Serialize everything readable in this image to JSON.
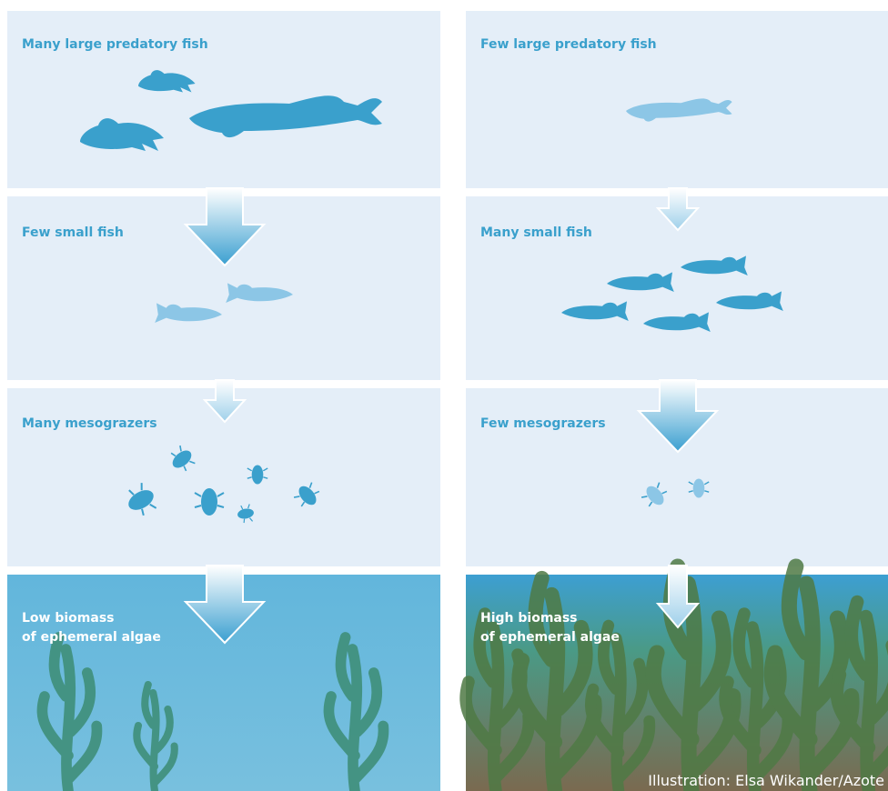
{
  "left": {
    "panels": [
      {
        "label": [
          "Many large predatory fish"
        ]
      },
      {
        "label": [
          "Few small fish"
        ]
      },
      {
        "label": [
          "Many mesograzers"
        ]
      },
      {
        "label": [
          "Low biomass",
          "of ephemeral algae"
        ]
      }
    ]
  },
  "right": {
    "panels": [
      {
        "label": [
          "Few large predatory fish"
        ]
      },
      {
        "label": [
          "Many small fish"
        ]
      },
      {
        "label": [
          "Few mesograzers"
        ]
      },
      {
        "label": [
          "High biomass",
          "of ephemeral algae"
        ]
      }
    ]
  },
  "credit": "Illustration: Elsa Wikander/Azote"
}
